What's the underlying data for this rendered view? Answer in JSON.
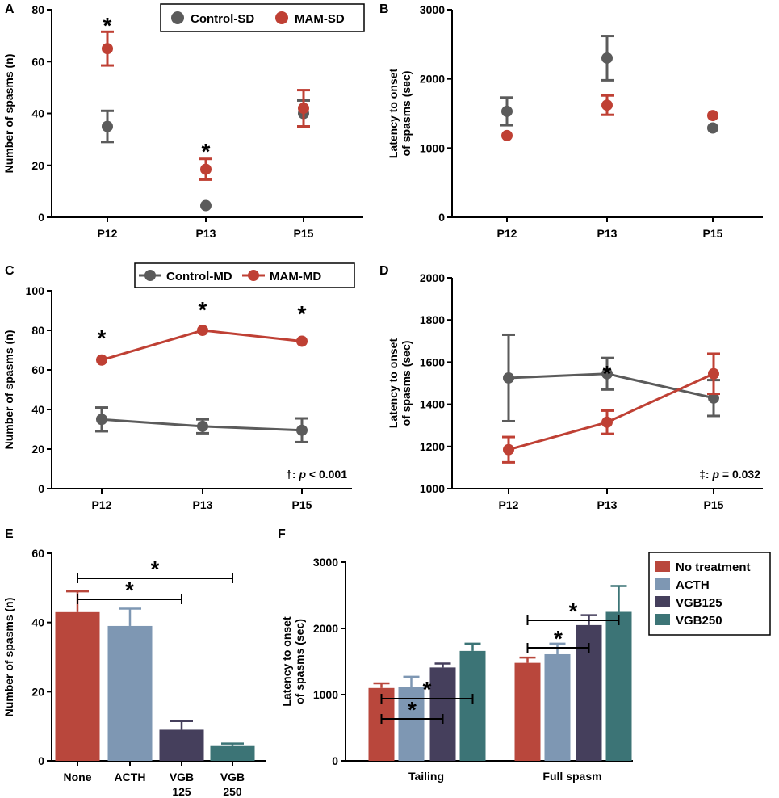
{
  "colors": {
    "control": "#5b5b5b",
    "mam": "#bf4034",
    "no_treatment": "#b9473c",
    "acth": "#7e97b3",
    "vgb125": "#453f5c",
    "vgb250": "#3c7476",
    "axis": "#000000"
  },
  "chart_data": [
    {
      "id": "A",
      "letter": "A",
      "type": "scatter",
      "xlabel": "",
      "ylabel": "Number of spasms (n)",
      "categories": [
        "P12",
        "P13",
        "P15"
      ],
      "ylim": [
        0,
        80
      ],
      "yticks": [
        "0",
        "20",
        "40",
        "60",
        "80"
      ],
      "legend": [
        "Control-SD",
        "MAM-SD"
      ],
      "series": [
        {
          "name": "Control-SD",
          "values": [
            35,
            4.5,
            40
          ],
          "err": [
            6,
            0,
            5
          ]
        },
        {
          "name": "MAM-SD",
          "values": [
            65,
            18.5,
            42
          ],
          "err": [
            6.5,
            4,
            7
          ]
        }
      ],
      "stars": [
        "*",
        "*"
      ]
    },
    {
      "id": "B",
      "letter": "B",
      "type": "scatter",
      "xlabel": "",
      "ylabel_lines": [
        "Latency to onset",
        "of spasms (sec)"
      ],
      "categories": [
        "P12",
        "P13",
        "P15"
      ],
      "ylim": [
        0,
        3000
      ],
      "yticks": [
        "0",
        "1000",
        "2000",
        "3000"
      ],
      "series": [
        {
          "name": "Control-SD",
          "values": [
            1530,
            2300,
            1290
          ],
          "err": [
            200,
            320,
            0
          ]
        },
        {
          "name": "MAM-SD",
          "values": [
            1180,
            1620,
            1470
          ],
          "err": [
            0,
            140,
            0
          ]
        }
      ]
    },
    {
      "id": "C",
      "letter": "C",
      "type": "line",
      "xlabel": "",
      "ylabel": "Number of spasms (n)",
      "categories": [
        "P12",
        "P13",
        "P15"
      ],
      "ylim": [
        0,
        100
      ],
      "yticks": [
        "0",
        "20",
        "40",
        "60",
        "80",
        "100"
      ],
      "legend": [
        "Control-MD",
        "MAM-MD"
      ],
      "series": [
        {
          "name": "Control-MD",
          "values": [
            35,
            31.5,
            29.5
          ],
          "err": [
            6,
            3.5,
            6
          ]
        },
        {
          "name": "MAM-MD",
          "values": [
            65,
            80,
            74.5
          ],
          "err": [
            0,
            0,
            0
          ]
        }
      ],
      "stars": [
        "*",
        "*",
        "*"
      ],
      "note": {
        "symbol": "†: ",
        "italic": "p",
        "rest": " < 0.001"
      }
    },
    {
      "id": "D",
      "letter": "D",
      "type": "line",
      "xlabel": "",
      "ylabel_lines": [
        "Latency to onset",
        "of spasms (sec)"
      ],
      "categories": [
        "P12",
        "P13",
        "P15"
      ],
      "ylim": [
        1000,
        2000
      ],
      "yticks": [
        "1000",
        "1200",
        "1400",
        "1600",
        "1800",
        "2000"
      ],
      "series": [
        {
          "name": "Control-MD",
          "values": [
            1525,
            1545,
            1430
          ],
          "err": [
            205,
            75,
            85
          ]
        },
        {
          "name": "MAM-MD",
          "values": [
            1185,
            1315,
            1545
          ],
          "err": [
            60,
            55,
            95
          ]
        }
      ],
      "stars": [
        "*"
      ],
      "note": {
        "symbol": "‡: ",
        "italic": "p",
        "rest": " = 0.032"
      }
    },
    {
      "id": "E",
      "letter": "E",
      "type": "bar",
      "xlabel": "",
      "ylabel": "Number of spasms (n)",
      "categories": [
        [
          "None"
        ],
        [
          "ACTH"
        ],
        [
          "VGB",
          "125"
        ],
        [
          "VGB",
          "250"
        ]
      ],
      "ylim": [
        0,
        60
      ],
      "yticks": [
        "0",
        "20",
        "40",
        "60"
      ],
      "values": [
        43,
        39,
        9,
        4.5
      ],
      "err": [
        6,
        5,
        2.5,
        0.5
      ],
      "stars": [
        "*",
        "*"
      ]
    },
    {
      "id": "F",
      "letter": "F",
      "type": "bar",
      "xlabel": "",
      "ylabel_lines": [
        "Latency to onset",
        "of spasms (sec)"
      ],
      "categories": [
        "Tailing",
        "Full spasm"
      ],
      "ylim": [
        0,
        3000
      ],
      "yticks": [
        "0",
        "1000",
        "2000",
        "3000"
      ],
      "legend": [
        "No treatment",
        "ACTH",
        "VGB125",
        "VGB250"
      ],
      "series": [
        {
          "name": "No treatment",
          "values": [
            1100,
            1480
          ],
          "err": [
            70,
            80
          ]
        },
        {
          "name": "ACTH",
          "values": [
            1110,
            1610
          ],
          "err": [
            160,
            160
          ]
        },
        {
          "name": "VGB125",
          "values": [
            1410,
            2050
          ],
          "err": [
            60,
            150
          ]
        },
        {
          "name": "VGB250",
          "values": [
            1660,
            2250
          ],
          "err": [
            110,
            390
          ]
        }
      ],
      "stars": [
        "*",
        "*",
        "*",
        "*"
      ]
    }
  ]
}
